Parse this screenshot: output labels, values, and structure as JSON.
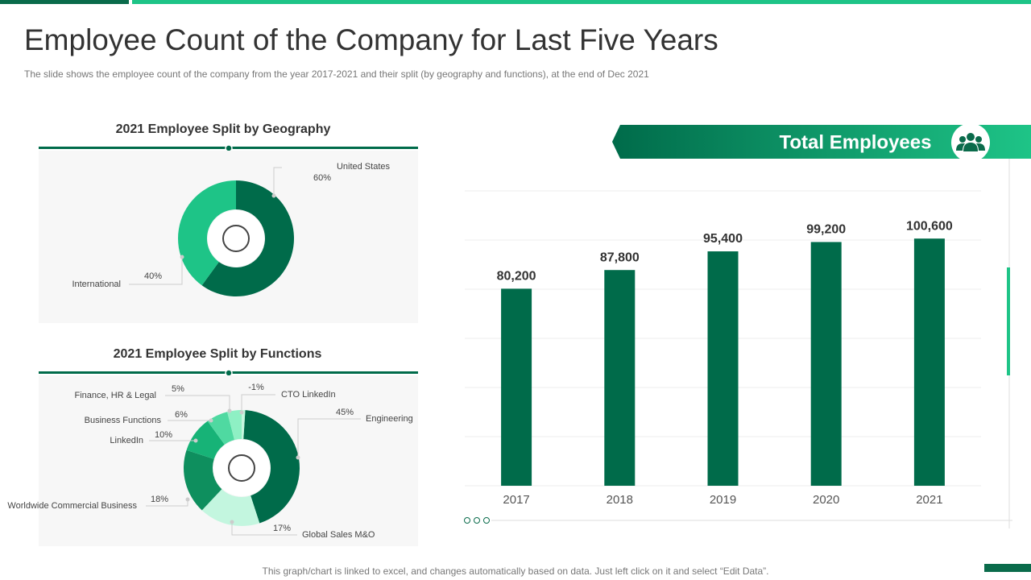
{
  "header": {
    "title": "Employee Count of the Company for Last Five Years",
    "subtitle": "The slide shows the employee count of the company from the year 2017-2021  and their split (by geography  and functions), at the end of Dec 2021"
  },
  "footer": {
    "note": "This graph/chart is linked to excel,  and changes automatically based on data. Just left click on it and select “Edit Data”."
  },
  "chart_data": [
    {
      "type": "donut",
      "title": "2021 Employee Split by Geography",
      "categories": [
        "United States",
        "International"
      ],
      "values": [
        60,
        40
      ],
      "value_labels": [
        "60%",
        "40%"
      ],
      "colors": [
        "#006b4a",
        "#1ec487"
      ]
    },
    {
      "type": "donut",
      "title": "2021 Employee Split by Functions",
      "categories": [
        "Engineering",
        "Global Sales M&O",
        "Worldwide Commercial Business",
        "LinkedIn",
        "Business Functions",
        "Finance, HR & Legal",
        "CTO LinkedIn"
      ],
      "values": [
        45,
        17,
        18,
        10,
        6,
        5,
        -1
      ],
      "value_labels": [
        "45%",
        "17%",
        "18%",
        "10%",
        "6%",
        "5%",
        "-1%"
      ],
      "colors": [
        "#006b4a",
        "#c3f6df",
        "#0e8f5e",
        "#17b377",
        "#4fd9a1",
        "#8ef0c4",
        "#c6f7df"
      ]
    },
    {
      "type": "bar",
      "title": "Total Employees",
      "categories": [
        "2017",
        "2018",
        "2019",
        "2020",
        "2021"
      ],
      "values": [
        80200,
        87800,
        95400,
        99200,
        100600
      ],
      "value_labels": [
        "80,200",
        "87,800",
        "95,400",
        "99,200",
        "100,600"
      ],
      "color": "#006b4a",
      "ylim": [
        0,
        120000
      ],
      "yticks": [
        0,
        20000,
        40000,
        60000,
        80000,
        100000,
        120000
      ],
      "grid": true
    }
  ]
}
